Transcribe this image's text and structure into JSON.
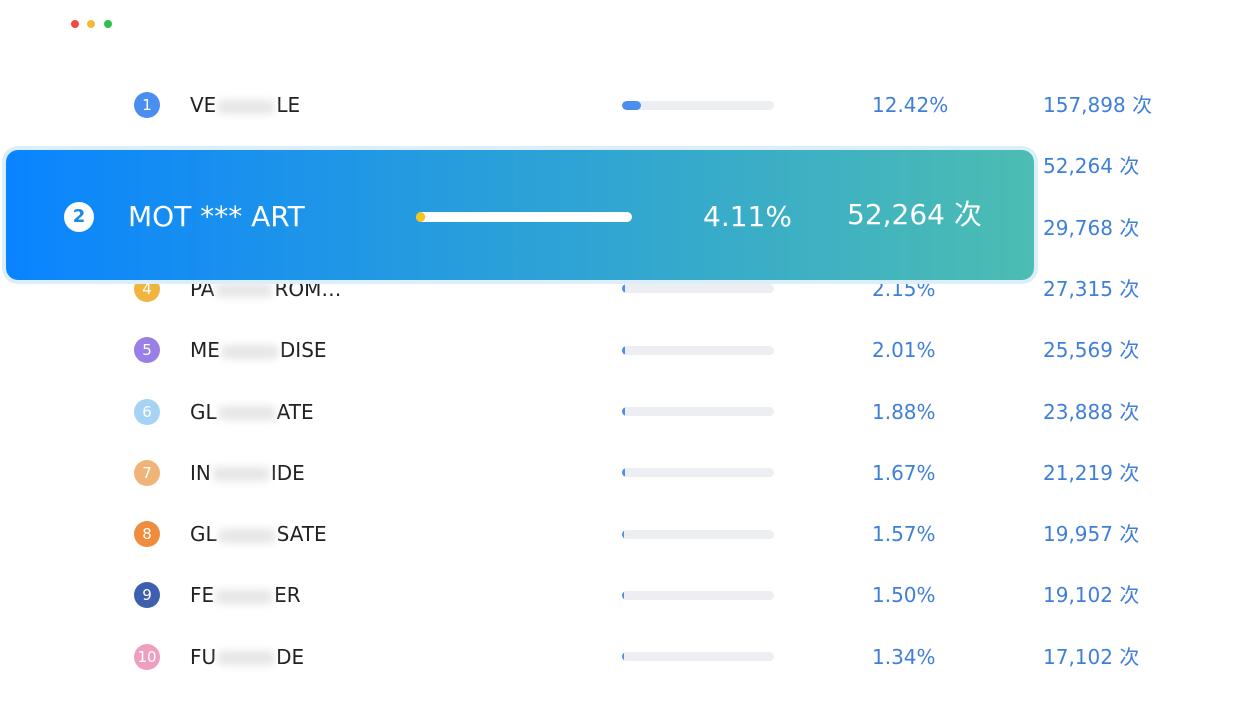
{
  "rows": [
    {
      "rank": "1",
      "color": "#4a8ff0",
      "name": [
        "VE",
        "LE"
      ],
      "percent": {
        "value": 12.42,
        "label": "12.42%"
      },
      "count": "157,898 次"
    },
    {
      "count": "52,264 次"
    },
    {
      "count": "29,768 次"
    },
    {
      "rank": "4",
      "color": "#f0b440",
      "name": [
        "PA",
        "ROM…"
      ],
      "percent": {
        "value": 2.15,
        "label": "2.15%"
      },
      "count": "27,315 次"
    },
    {
      "rank": "5",
      "color": "#9a80e6",
      "name": [
        "ME",
        "DISE"
      ],
      "percent": {
        "value": 2.01,
        "label": "2.01%"
      },
      "count": "25,569 次"
    },
    {
      "rank": "6",
      "color": "#a6d3f3",
      "name": [
        "GL",
        "ATE"
      ],
      "percent": {
        "value": 1.88,
        "label": "1.88%"
      },
      "count": "23,888 次"
    },
    {
      "rank": "7",
      "color": "#f0b478",
      "name": [
        "IN",
        "IDE"
      ],
      "percent": {
        "value": 1.67,
        "label": "1.67%"
      },
      "count": "21,219 次"
    },
    {
      "rank": "8",
      "color": "#ef8c3e",
      "name": [
        "GL",
        "SATE"
      ],
      "percent": {
        "value": 1.57,
        "label": "1.57%"
      },
      "count": "19,957 次"
    },
    {
      "rank": "9",
      "color": "#3e5fae",
      "name": [
        "FE",
        "ER"
      ],
      "percent": {
        "value": 1.5,
        "label": "1.50%"
      },
      "count": "19,102 次"
    },
    {
      "rank": "10",
      "color": "#ee9fc0",
      "name": [
        "FU",
        "DE"
      ],
      "percent": {
        "value": 1.34,
        "label": "1.34%"
      },
      "count": "17,102 次"
    }
  ],
  "highlight": {
    "rank": "2",
    "name": "MOT *** ART",
    "percent": {
      "value": 4.11,
      "label": "4.11%"
    },
    "count": "52,264 次"
  }
}
